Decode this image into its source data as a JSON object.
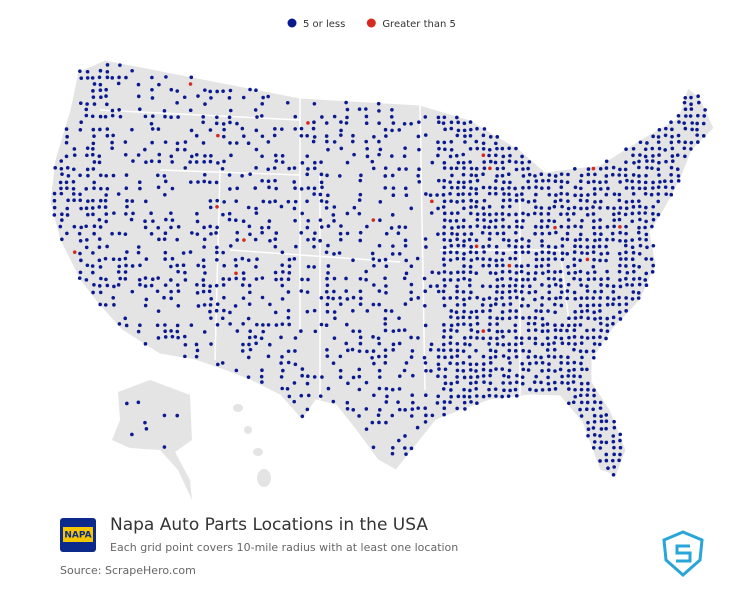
{
  "legend": {
    "items": [
      {
        "label": "5 or less",
        "color": "#0b1b8f"
      },
      {
        "label": "Greater than 5",
        "color": "#d42a1f"
      }
    ]
  },
  "footer": {
    "logo": "NAPA",
    "title": "Napa Auto Parts Locations in the USA",
    "subtitle": "Each grid point covers 10-mile radius with at least one location",
    "source": "Source: ScrapeHero.com"
  }
}
